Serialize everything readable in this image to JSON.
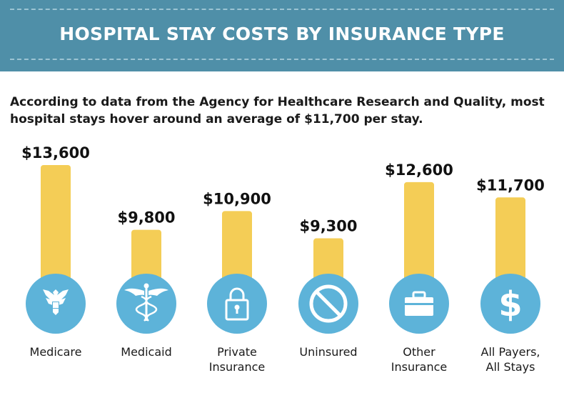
{
  "header": {
    "title": "HOSPITAL STAY COSTS BY INSURANCE TYPE"
  },
  "intro": {
    "text": "According to data from the Agency for Healthcare Research and Quality, most hospital stays hover around an average of $11,700 per stay."
  },
  "colors": {
    "banner": "#4f8fa8",
    "bar": "#f4cd56",
    "circle": "#5db3d9",
    "icon": "#ffffff"
  },
  "chart_data": {
    "type": "bar",
    "categories": [
      "Medicare",
      "Medicaid",
      "Private Insurance",
      "Uninsured",
      "Other Insurance",
      "All Payers, All Stays"
    ],
    "category_lines": [
      [
        "Medicare"
      ],
      [
        "Medicaid"
      ],
      [
        "Private",
        "Insurance"
      ],
      [
        "Uninsured"
      ],
      [
        "Other",
        "Insurance"
      ],
      [
        "All Payers,",
        "All Stays"
      ]
    ],
    "values": [
      13600,
      9800,
      10900,
      9300,
      12600,
      11700
    ],
    "value_labels": [
      "$13,600",
      "$9,800",
      "$10,900",
      "$9,300",
      "$12,600",
      "$11,700"
    ],
    "icons": [
      "eagle-icon",
      "caduceus-icon",
      "padlock-icon",
      "prohibited-icon",
      "briefcase-icon",
      "dollar-icon"
    ],
    "title": "HOSPITAL STAY COSTS BY INSURANCE TYPE",
    "xlabel": "",
    "ylabel": "",
    "ylim": [
      7100,
      13600
    ],
    "grid": false,
    "legend": "none"
  }
}
